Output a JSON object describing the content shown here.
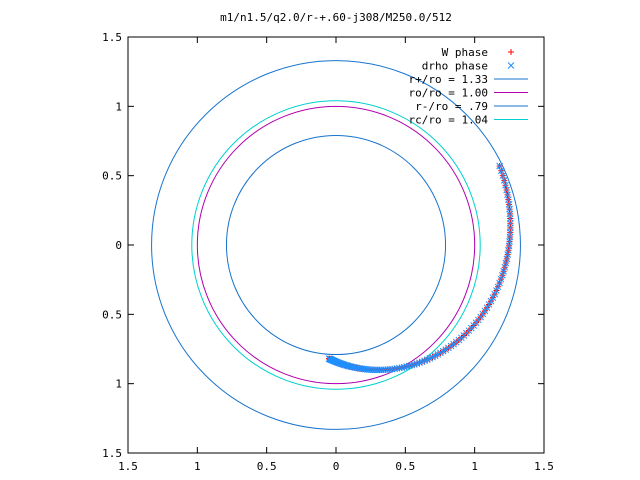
{
  "chart_data": {
    "type": "scatter",
    "title": "m1/n1.5/q2.0/r-+.60-j308/M250.0/512",
    "xlim": [
      -1.5,
      1.5
    ],
    "ylim": [
      -1.5,
      1.5
    ],
    "x_ticks": [
      -1.5,
      -1,
      -0.5,
      0,
      0.5,
      1,
      1.5
    ],
    "y_ticks": [
      -1.5,
      -1,
      -0.5,
      0,
      0.5,
      1,
      1.5
    ],
    "x_tick_labels": [
      "1.5",
      "1",
      "0.5",
      "0",
      "0.5",
      "1",
      "1.5"
    ],
    "y_tick_labels": [
      "1.5",
      "1",
      "0.5",
      "0",
      "0.5",
      "1",
      "1.5"
    ],
    "grid": false,
    "legend_position": "top-right",
    "series": [
      {
        "name": "W phase",
        "kind": "points",
        "marker": "plus",
        "color": "#ff0000",
        "arc_start": [
          -0.05,
          -0.82
        ],
        "arc_end": [
          1.18,
          0.57
        ],
        "arc_points": 120
      },
      {
        "name": "drho phase",
        "kind": "points",
        "marker": "cross",
        "color": "#1e90ff",
        "arc_start": [
          -0.05,
          -0.82
        ],
        "arc_end": [
          1.18,
          0.57
        ],
        "arc_points": 120
      },
      {
        "name": "r+/ro = 1.33",
        "kind": "circle",
        "radius": 1.33,
        "color": "#1874cd"
      },
      {
        "name": "ro/ro = 1.00",
        "kind": "circle",
        "radius": 1.0,
        "color": "#b000b0"
      },
      {
        "name": "r-/ro = .79",
        "kind": "circle",
        "radius": 0.79,
        "color": "#1874cd"
      },
      {
        "name": "rc/ro = 1.04",
        "kind": "circle",
        "radius": 1.04,
        "color": "#00d0d0"
      }
    ]
  }
}
